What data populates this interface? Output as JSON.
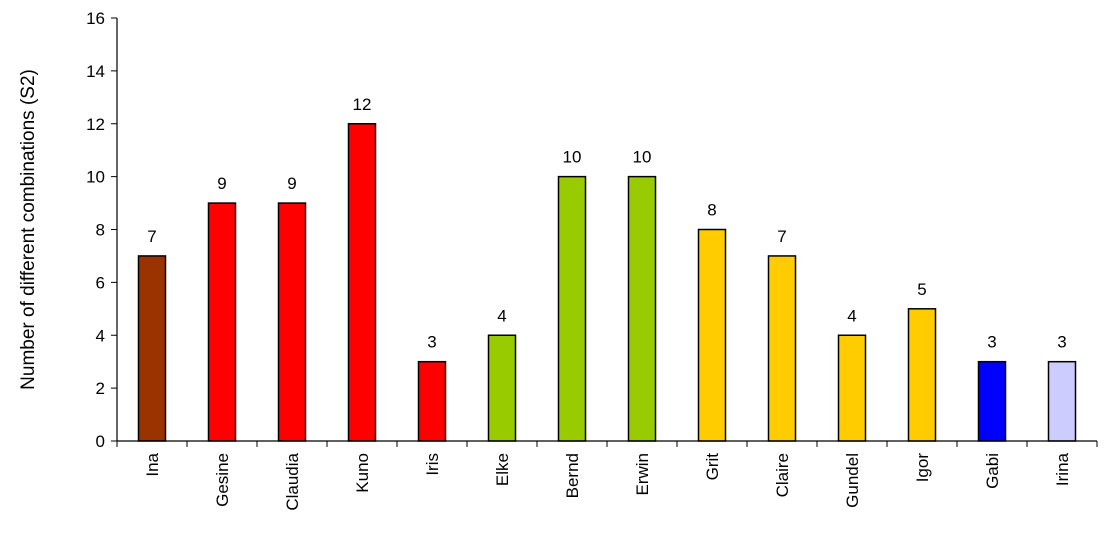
{
  "chart_data": {
    "type": "bar",
    "title": "",
    "xlabel": "",
    "ylabel": "Number of different combinations (S2)",
    "categories": [
      "Ina",
      "Gesine",
      "Claudia",
      "Kuno",
      "Iris",
      "Elke",
      "Bernd",
      "Erwin",
      "Grit",
      "Claire",
      "Gundel",
      "Igor",
      "Gabi",
      "Irina"
    ],
    "values": [
      7,
      9,
      9,
      12,
      3,
      4,
      10,
      10,
      8,
      7,
      4,
      5,
      3,
      3
    ],
    "bar_colors": [
      "#993300",
      "#ff0000",
      "#ff0000",
      "#ff0000",
      "#ff0000",
      "#99cc00",
      "#99cc00",
      "#99cc00",
      "#ffcc00",
      "#ffcc00",
      "#ffcc00",
      "#ffcc00",
      "#0000ff",
      "#ccccff"
    ],
    "ylim": [
      0,
      16
    ],
    "yticks": [
      0,
      2,
      4,
      6,
      8,
      10,
      12,
      14,
      16
    ],
    "data_labels": true,
    "grid": false,
    "legend": "none"
  }
}
